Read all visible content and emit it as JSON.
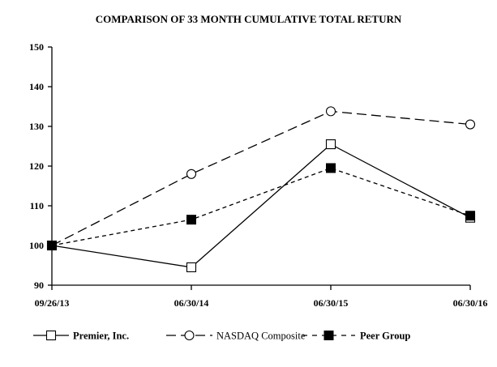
{
  "chart_data": {
    "type": "line",
    "title": "COMPARISON OF 33 MONTH CUMULATIVE TOTAL RETURN",
    "categories": [
      "09/26/13",
      "06/30/14",
      "06/30/15",
      "06/30/16"
    ],
    "ylim": [
      90,
      150
    ],
    "yticks": [
      90,
      100,
      110,
      120,
      130,
      140,
      150
    ],
    "grid": false,
    "xlabel": "",
    "ylabel": "",
    "series": [
      {
        "name": "Premier, Inc.",
        "values": [
          100,
          94.5,
          125.5,
          107
        ],
        "line": "solid",
        "marker": "open-square"
      },
      {
        "name": "NASDAQ Composite",
        "values": [
          100,
          118,
          133.8,
          130.5
        ],
        "line": "long-dash",
        "marker": "open-circle"
      },
      {
        "name": "Peer Group",
        "values": [
          100,
          106.5,
          119.5,
          107.5
        ],
        "line": "short-dash",
        "marker": "filled-square"
      }
    ],
    "legend_position": "bottom"
  }
}
